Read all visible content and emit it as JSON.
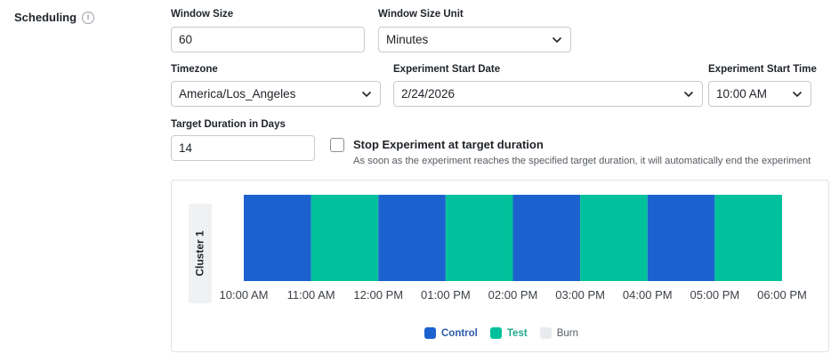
{
  "section": {
    "title": "Scheduling",
    "info_icon": "info-icon"
  },
  "window_size": {
    "label": "Window Size",
    "value": "60"
  },
  "window_size_unit": {
    "label": "Window Size Unit",
    "value": "Minutes"
  },
  "timezone": {
    "label": "Timezone",
    "value": "America/Los_Angeles"
  },
  "start_date": {
    "label": "Experiment Start Date",
    "value": "2/24/2026"
  },
  "start_time": {
    "label": "Experiment Start Time",
    "value": "10:00 AM"
  },
  "target_duration": {
    "label": "Target Duration in Days",
    "value": "14"
  },
  "stop_checkbox": {
    "title": "Stop Experiment at target duration",
    "description": "As soon as the experiment reaches the specified target duration, it will automatically end the experiment",
    "checked": false
  },
  "colors": {
    "control": "#1c62cf",
    "test": "#00c19c",
    "burn": "#e9eaed"
  },
  "chart_data": {
    "type": "bar",
    "row_label": "Cluster 1",
    "x": [
      "10:00 AM",
      "11:00 AM",
      "12:00 PM",
      "01:00 PM",
      "02:00 PM",
      "03:00 PM",
      "04:00 PM",
      "05:00 PM",
      "06:00 PM"
    ],
    "segments": [
      "Control",
      "Test",
      "Control",
      "Test",
      "Control",
      "Test",
      "Control",
      "Test"
    ],
    "legend": [
      "Control",
      "Test",
      "Burn"
    ]
  }
}
